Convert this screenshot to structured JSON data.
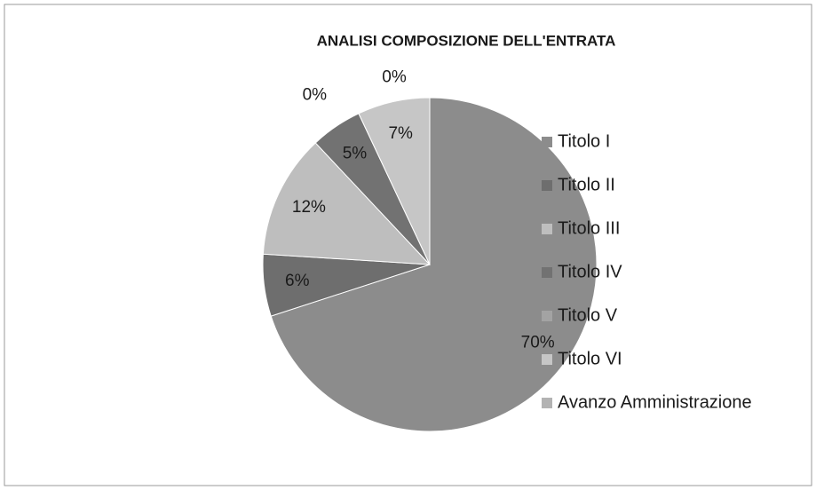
{
  "chart_data": {
    "type": "pie",
    "title": "ANALISI COMPOSIZIONE DELL'ENTRATA",
    "categories": [
      "Titolo I",
      "Titolo II",
      "Titolo III",
      "Titolo IV",
      "Titolo V",
      "Titolo VI",
      "Avanzo Amministrazione"
    ],
    "values": [
      70,
      6,
      12,
      5,
      0,
      7,
      0
    ],
    "value_labels": [
      "70%",
      "6%",
      "12%",
      "5%",
      "0%",
      "7%",
      "0%"
    ],
    "colors": [
      "#8c8c8c",
      "#6e6e6e",
      "#bebebe",
      "#727272",
      "#a3a3a3",
      "#c6c6c6",
      "#b3b3b3"
    ],
    "legend": "right"
  }
}
